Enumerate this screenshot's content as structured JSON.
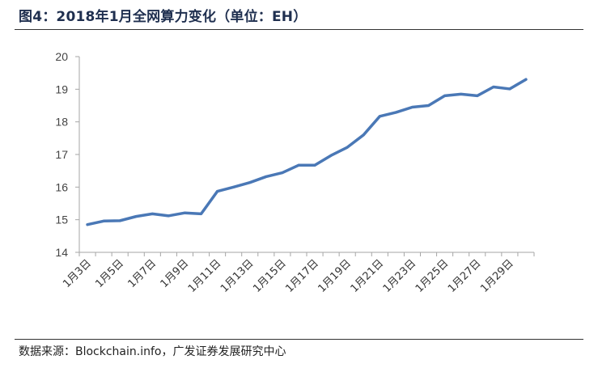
{
  "figure": {
    "title": "图4：2018年1月全网算力变化（单位：EH）",
    "source": "数据来源：Blockchain.info，广发证券发展研究中心"
  },
  "colors": {
    "line": "#4a78b6",
    "axis": "#a6a6a6",
    "text": "#333333"
  },
  "chart_data": {
    "type": "line",
    "title": "图4：2018年1月全网算力变化（单位：EH）",
    "xlabel": "",
    "ylabel": "",
    "ylim": [
      14,
      20
    ],
    "yticks": [
      14,
      15,
      16,
      17,
      18,
      19,
      20
    ],
    "grid": false,
    "legend": "none",
    "x": [
      "1月3日",
      "1月4日",
      "1月5日",
      "1月6日",
      "1月7日",
      "1月8日",
      "1月9日",
      "1月10日",
      "1月11日",
      "1月12日",
      "1月13日",
      "1月14日",
      "1月15日",
      "1月16日",
      "1月17日",
      "1月18日",
      "1月19日",
      "1月20日",
      "1月21日",
      "1月22日",
      "1月23日",
      "1月24日",
      "1月25日",
      "1月26日",
      "1月27日",
      "1月28日",
      "1月29日",
      "1月30日"
    ],
    "xtick_labels": [
      "1月3日",
      "1月5日",
      "1月7日",
      "1月9日",
      "1月11日",
      "1月13日",
      "1月15日",
      "1月17日",
      "1月19日",
      "1月21日",
      "1月23日",
      "1月25日",
      "1月27日",
      "1月29日"
    ],
    "series": [
      {
        "values": [
          14.85,
          14.96,
          14.97,
          15.1,
          15.18,
          15.12,
          15.21,
          15.18,
          15.87,
          16.0,
          16.14,
          16.32,
          16.44,
          16.67,
          16.67,
          16.97,
          17.22,
          17.6,
          18.17,
          18.29,
          18.45,
          18.5,
          18.8,
          18.85,
          18.8,
          19.07,
          19.01,
          19.3
        ]
      }
    ]
  }
}
